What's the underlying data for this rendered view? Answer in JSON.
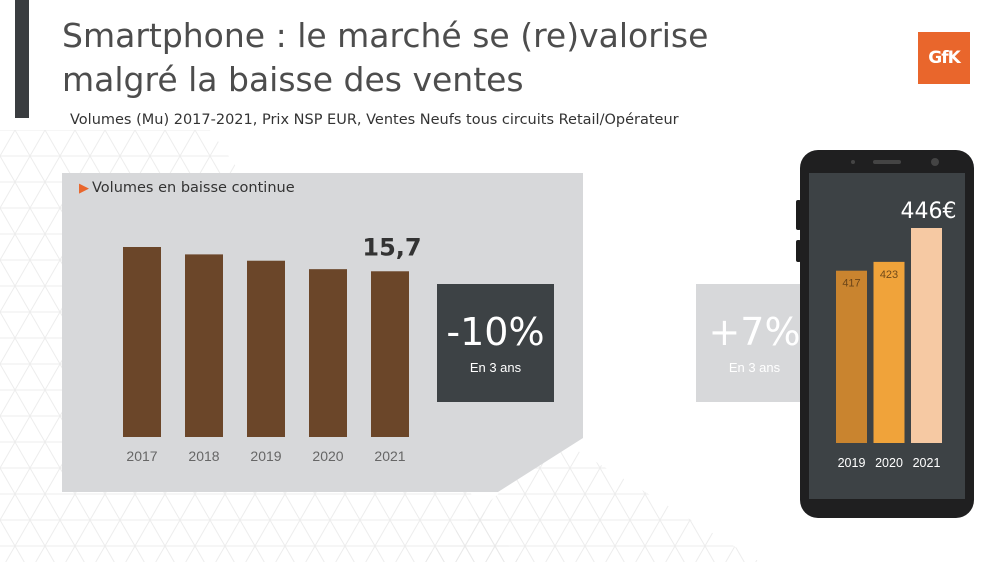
{
  "header": {
    "title_line1": "Smartphone : le marché se (re)valorise",
    "title_line2": "malgré la baisse des ventes",
    "subtitle": "Volumes (Mu) 2017-2021, Prix NSP EUR, Ventes Neufs tous circuits Retail/Opérateur",
    "logo_text": "GfK"
  },
  "colors": {
    "accent": "#e9662c",
    "volume_bar": "#6b4629",
    "price_bars": [
      "#c9842f",
      "#f0a33a",
      "#f6c9a3"
    ],
    "panel": "#d7d8da",
    "dark_box": "#3d4245"
  },
  "volume_panel": {
    "title": "Volumes en baisse continue",
    "kpi_value": "-10%",
    "kpi_label": "En 3 ans"
  },
  "price_panel": {
    "kpi_value": "+7%",
    "kpi_label": "En 3 ans"
  },
  "chart_data": [
    {
      "type": "bar",
      "categories": [
        "2017",
        "2018",
        "2019",
        "2020",
        "2021"
      ],
      "values": [
        18.0,
        17.3,
        16.7,
        15.9,
        15.7
      ],
      "data_labels": [
        "",
        "",
        "",
        "",
        "15,7"
      ],
      "grid": false
    },
    {
      "type": "bar",
      "categories": [
        "2019",
        "2020",
        "2021"
      ],
      "values": [
        417,
        423,
        446
      ],
      "data_labels": [
        "417",
        "423",
        "446€"
      ],
      "grid": false
    }
  ]
}
